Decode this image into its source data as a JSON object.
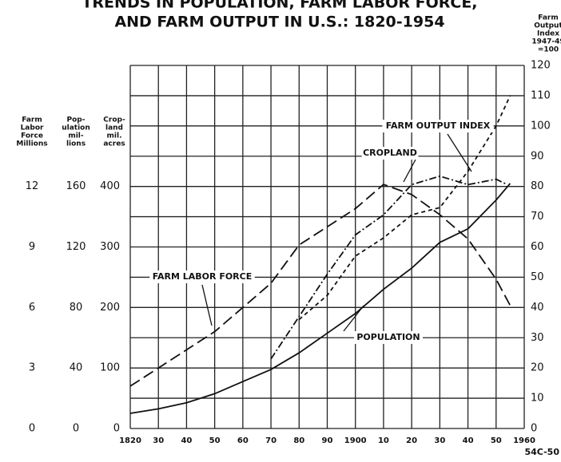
{
  "chart_data": {
    "type": "line",
    "title": [
      "TRENDS IN POPULATION, FARM LABOR FORCE,",
      "AND FARM OUTPUT IN U.S.: 1820-1954"
    ],
    "xlim": [
      1820,
      1960
    ],
    "xticks": [
      1820,
      {
        "value": 1830,
        "label": "30"
      },
      {
        "value": 1840,
        "label": "40"
      },
      {
        "value": 1850,
        "label": "50"
      },
      {
        "value": 1860,
        "label": "60"
      },
      {
        "value": 1870,
        "label": "70"
      },
      {
        "value": 1880,
        "label": "80"
      },
      {
        "value": 1890,
        "label": "90"
      },
      1900,
      {
        "value": 1910,
        "label": "10"
      },
      {
        "value": 1920,
        "label": "20"
      },
      {
        "value": 1930,
        "label": "30"
      },
      {
        "value": 1940,
        "label": "40"
      },
      {
        "value": 1950,
        "label": "50"
      },
      1960
    ],
    "grid": true,
    "axes": [
      {
        "label": [
          "Farm",
          "Output",
          "Index",
          "1947-49",
          "=100"
        ],
        "lim": [
          0,
          120
        ],
        "ticks": [
          0,
          10,
          20,
          30,
          40,
          50,
          60,
          70,
          80,
          90,
          100,
          110,
          120
        ],
        "side": "right"
      },
      {
        "label": [
          "Farm",
          "Labor",
          "Force",
          "Millions"
        ],
        "lim": [
          0,
          18
        ],
        "ticks": [
          0,
          3,
          6,
          9,
          12
        ],
        "side": "left"
      },
      {
        "label": [
          "Pop-",
          "ulation",
          "mil-",
          "lions"
        ],
        "lim": [
          0,
          240
        ],
        "ticks": [
          0,
          40,
          80,
          120,
          160
        ],
        "side": "left"
      },
      {
        "label": [
          "Crop-",
          "land",
          "mil.",
          "acres"
        ],
        "lim": [
          0,
          600
        ],
        "ticks": [
          0,
          100,
          200,
          300,
          400
        ],
        "side": "left"
      }
    ],
    "series": [
      {
        "name": "FARM LABOR FORCE",
        "axis": 1,
        "style": "dashed",
        "color": "#111111",
        "x": [
          1820,
          1850,
          1870,
          1880,
          1890,
          1900,
          1910,
          1920,
          1930,
          1940,
          1950,
          1955
        ],
        "values": [
          2.1,
          4.8,
          7.2,
          9.1,
          10.0,
          10.9,
          12.1,
          11.6,
          10.6,
          9.4,
          7.4,
          6.1
        ]
      },
      {
        "name": "POPULATION",
        "axis": 2,
        "style": "solid",
        "color": "#111111",
        "x": [
          1820,
          1830,
          1840,
          1850,
          1860,
          1870,
          1880,
          1890,
          1900,
          1910,
          1920,
          1930,
          1940,
          1950,
          1955
        ],
        "values": [
          10,
          13,
          17,
          23,
          31,
          39,
          50,
          63,
          76,
          92,
          106,
          123,
          132,
          151,
          162
        ]
      },
      {
        "name": "CROPLAND",
        "axis": 3,
        "style": "dashdot",
        "color": "#111111",
        "x": [
          1870,
          1880,
          1890,
          1900,
          1910,
          1920,
          1930,
          1940,
          1950,
          1954
        ],
        "values": [
          115,
          185,
          255,
          320,
          353,
          403,
          417,
          403,
          412,
          403
        ]
      },
      {
        "name": "FARM OUTPUT INDEX",
        "axis": 0,
        "style": "shortdash",
        "color": "#111111",
        "x": [
          1880,
          1890,
          1900,
          1910,
          1920,
          1930,
          1940,
          1950,
          1955
        ],
        "values": [
          36,
          44,
          57,
          63,
          70.6,
          73,
          85,
          100,
          110
        ]
      }
    ],
    "code": "54C-50"
  }
}
